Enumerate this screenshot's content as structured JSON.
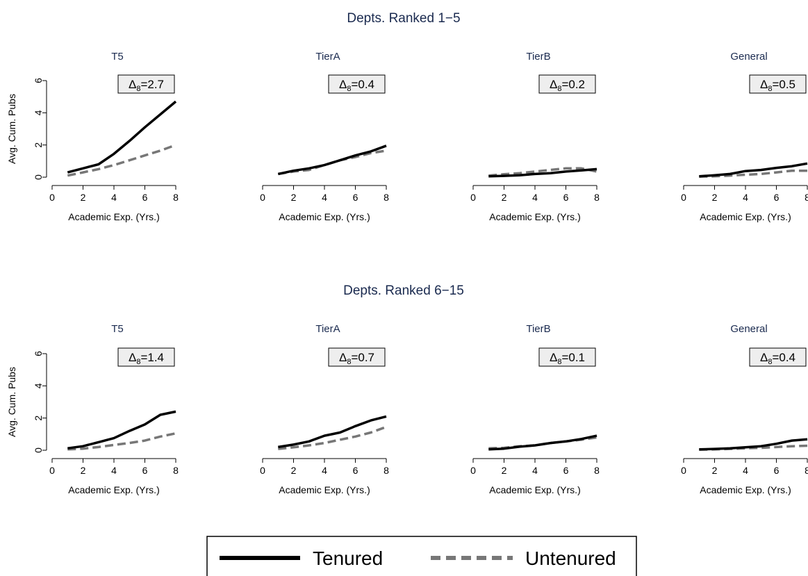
{
  "legend": {
    "items": [
      {
        "label": "Tenured",
        "color": "#000000",
        "dash": "solid"
      },
      {
        "label": "Untenured",
        "color": "#777777",
        "dash": "dashed"
      }
    ]
  },
  "chart_data": {
    "type": "line",
    "x": [
      1,
      2,
      3,
      4,
      5,
      6,
      7,
      8
    ],
    "xlim": [
      0,
      8
    ],
    "ylim": [
      0,
      6
    ],
    "xticks": [
      "0",
      "2",
      "4",
      "6",
      "8"
    ],
    "yticks": [
      "0",
      "2",
      "4",
      "6"
    ],
    "xlabel": "Academic Exp. (Yrs.)",
    "ylabel": "Avg. Cum. Pubs",
    "grid": false,
    "legend_position": "bottom",
    "rows": [
      {
        "title": "Depts. Ranked 1−5",
        "panels": [
          {
            "title": "T5",
            "delta_symbol": "Δ",
            "delta_sub": "8",
            "delta_value": "=2.7",
            "series": [
              {
                "name": "Tenured",
                "values": [
                  0.3,
                  0.55,
                  0.8,
                  1.45,
                  2.25,
                  3.1,
                  3.9,
                  4.7
                ]
              },
              {
                "name": "Untenured",
                "values": [
                  0.1,
                  0.3,
                  0.5,
                  0.75,
                  1.05,
                  1.35,
                  1.65,
                  2.0
                ]
              }
            ]
          },
          {
            "title": "TierA",
            "delta_symbol": "Δ",
            "delta_sub": "8",
            "delta_value": "=0.4",
            "series": [
              {
                "name": "Tenured",
                "values": [
                  0.2,
                  0.4,
                  0.55,
                  0.75,
                  1.05,
                  1.35,
                  1.6,
                  1.95
                ]
              },
              {
                "name": "Untenured",
                "values": [
                  0.2,
                  0.35,
                  0.45,
                  0.75,
                  1.05,
                  1.25,
                  1.5,
                  1.65
                ]
              }
            ]
          },
          {
            "title": "TierB",
            "delta_symbol": "Δ",
            "delta_sub": "8",
            "delta_value": "=0.2",
            "series": [
              {
                "name": "Tenured",
                "values": [
                  0.05,
                  0.08,
                  0.12,
                  0.2,
                  0.25,
                  0.35,
                  0.42,
                  0.5
                ]
              },
              {
                "name": "Untenured",
                "values": [
                  0.1,
                  0.18,
                  0.25,
                  0.35,
                  0.45,
                  0.55,
                  0.55,
                  0.35
                ]
              }
            ]
          },
          {
            "title": "General",
            "delta_symbol": "Δ",
            "delta_sub": "8",
            "delta_value": "=0.5",
            "series": [
              {
                "name": "Tenured",
                "values": [
                  0.05,
                  0.12,
                  0.2,
                  0.38,
                  0.45,
                  0.58,
                  0.68,
                  0.85
                ]
              },
              {
                "name": "Untenured",
                "values": [
                  0.03,
                  0.05,
                  0.1,
                  0.15,
                  0.2,
                  0.3,
                  0.4,
                  0.4
                ]
              }
            ]
          }
        ]
      },
      {
        "title": "Depts. Ranked 6−15",
        "panels": [
          {
            "title": "T5",
            "delta_symbol": "Δ",
            "delta_sub": "8",
            "delta_value": "=1.4",
            "series": [
              {
                "name": "Tenured",
                "values": [
                  0.12,
                  0.25,
                  0.5,
                  0.75,
                  1.2,
                  1.6,
                  2.2,
                  2.4
                ]
              },
              {
                "name": "Untenured",
                "values": [
                  0.05,
                  0.1,
                  0.2,
                  0.33,
                  0.45,
                  0.6,
                  0.85,
                  1.05
                ]
              }
            ]
          },
          {
            "title": "TierA",
            "delta_symbol": "Δ",
            "delta_sub": "8",
            "delta_value": "=0.7",
            "series": [
              {
                "name": "Tenured",
                "values": [
                  0.2,
                  0.35,
                  0.55,
                  0.9,
                  1.1,
                  1.5,
                  1.85,
                  2.1
                ]
              },
              {
                "name": "Untenured",
                "values": [
                  0.08,
                  0.18,
                  0.3,
                  0.45,
                  0.65,
                  0.85,
                  1.1,
                  1.45
                ]
              }
            ]
          },
          {
            "title": "TierB",
            "delta_symbol": "Δ",
            "delta_sub": "8",
            "delta_value": "=0.1",
            "series": [
              {
                "name": "Tenured",
                "values": [
                  0.05,
                  0.1,
                  0.22,
                  0.3,
                  0.45,
                  0.55,
                  0.7,
                  0.9
                ]
              },
              {
                "name": "Untenured",
                "values": [
                  0.12,
                  0.15,
                  0.25,
                  0.3,
                  0.45,
                  0.55,
                  0.65,
                  0.8
                ]
              }
            ]
          },
          {
            "title": "General",
            "delta_symbol": "Δ",
            "delta_sub": "8",
            "delta_value": "=0.4",
            "series": [
              {
                "name": "Tenured",
                "values": [
                  0.05,
                  0.08,
                  0.12,
                  0.18,
                  0.25,
                  0.4,
                  0.6,
                  0.68
                ]
              },
              {
                "name": "Untenured",
                "values": [
                  0.03,
                  0.05,
                  0.08,
                  0.12,
                  0.15,
                  0.2,
                  0.25,
                  0.28
                ]
              }
            ]
          }
        ]
      }
    ]
  }
}
